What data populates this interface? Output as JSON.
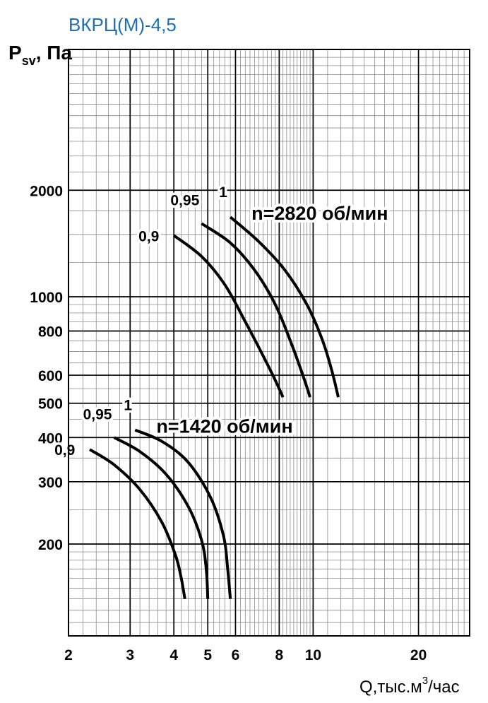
{
  "title": "ВКРЦ(М)-4,5",
  "y_axis": {
    "label_main": "P",
    "label_sub": "sv",
    "label_tail": ", Па"
  },
  "x_axis": {
    "label_main": "Q,тыс.м",
    "label_sup": "3",
    "label_tail": "/час"
  },
  "chart_data": {
    "type": "line",
    "xscale": "log",
    "yscale": "log",
    "xlim": [
      2,
      28
    ],
    "ylim": [
      110,
      5000
    ],
    "grid": true,
    "xticks": [
      2,
      3,
      4,
      5,
      6,
      8,
      10,
      20
    ],
    "xtick_labels": [
      "2",
      "3",
      "4",
      "5",
      "6",
      "8",
      "10",
      "20"
    ],
    "yticks": [
      200,
      300,
      400,
      500,
      600,
      800,
      1000,
      2000
    ],
    "ytick_labels": [
      "200",
      "300",
      "400",
      "500",
      "600",
      "800",
      "1000",
      "2000"
    ],
    "series_groups": [
      {
        "name": "n=2820 об/мин",
        "series": [
          {
            "label": "0,9",
            "points": [
              [
                4.0,
                1490
              ],
              [
                4.8,
                1300
              ],
              [
                5.6,
                1080
              ],
              [
                6.4,
                850
              ],
              [
                7.2,
                680
              ],
              [
                7.8,
                580
              ],
              [
                8.2,
                520
              ]
            ]
          },
          {
            "label": "0,95",
            "points": [
              [
                4.8,
                1610
              ],
              [
                5.8,
                1420
              ],
              [
                6.8,
                1190
              ],
              [
                7.8,
                950
              ],
              [
                8.7,
                730
              ],
              [
                9.4,
                590
              ],
              [
                9.8,
                520
              ]
            ]
          },
          {
            "label": "1",
            "points": [
              [
                5.8,
                1680
              ],
              [
                7.0,
                1430
              ],
              [
                8.3,
                1190
              ],
              [
                9.6,
                950
              ],
              [
                10.6,
                760
              ],
              [
                11.3,
                620
              ],
              [
                11.8,
                520
              ]
            ]
          }
        ]
      },
      {
        "name": "n=1420 об/мин",
        "series": [
          {
            "label": "0,9",
            "points": [
              [
                2.3,
                370
              ],
              [
                2.7,
                335
              ],
              [
                3.2,
                285
              ],
              [
                3.7,
                230
              ],
              [
                4.05,
                185
              ],
              [
                4.2,
                160
              ],
              [
                4.3,
                140
              ]
            ]
          },
          {
            "label": "0,95",
            "points": [
              [
                2.7,
                400
              ],
              [
                3.2,
                365
              ],
              [
                3.8,
                315
              ],
              [
                4.4,
                255
              ],
              [
                4.8,
                205
              ],
              [
                4.95,
                170
              ],
              [
                5.0,
                140
              ]
            ]
          },
          {
            "label": "1",
            "points": [
              [
                3.1,
                420
              ],
              [
                3.7,
                390
              ],
              [
                4.4,
                340
              ],
              [
                5.1,
                270
              ],
              [
                5.55,
                210
              ],
              [
                5.7,
                170
              ],
              [
                5.8,
                140
              ]
            ]
          }
        ]
      }
    ]
  }
}
